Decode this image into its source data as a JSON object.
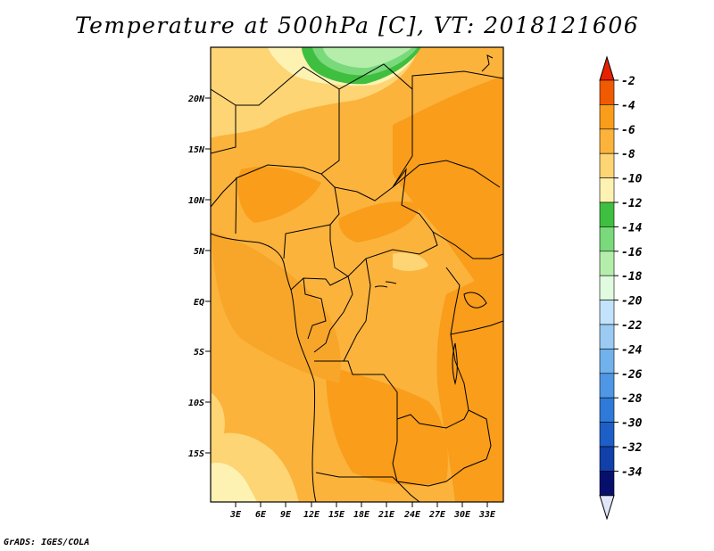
{
  "title": "Temperature at 500hPa [C], VT: 2018121606",
  "footer": "GrADS: IGES/COLA",
  "map": {
    "lat_labels": [
      "20N",
      "15N",
      "10N",
      "5N",
      "EQ",
      "5S",
      "10S",
      "15S"
    ],
    "lon_labels": [
      "3E",
      "6E",
      "9E",
      "12E",
      "15E",
      "18E",
      "21E",
      "24E",
      "27E",
      "30E",
      "33E"
    ]
  },
  "colorbar": {
    "labels": [
      "-2",
      "-4",
      "-6",
      "-8",
      "-10",
      "-12",
      "-14",
      "-16",
      "-18",
      "-20",
      "-22",
      "-24",
      "-26",
      "-28",
      "-30",
      "-32",
      "-34"
    ],
    "colors": [
      "#f05a00",
      "#f99d1a",
      "#fbb33c",
      "#fdd575",
      "#fef2b3",
      "#3fbf3f",
      "#79d97b",
      "#b5eeaa",
      "#e0fbe0",
      "#c3e2fb",
      "#9bcaf2",
      "#71b2ed",
      "#4f97e4",
      "#2f7ad8",
      "#1d5fc6",
      "#1040a8",
      "#070f6d"
    ],
    "top_arrow_color": "#e82000",
    "bottom_arrow_color": "#e2e6f9"
  }
}
